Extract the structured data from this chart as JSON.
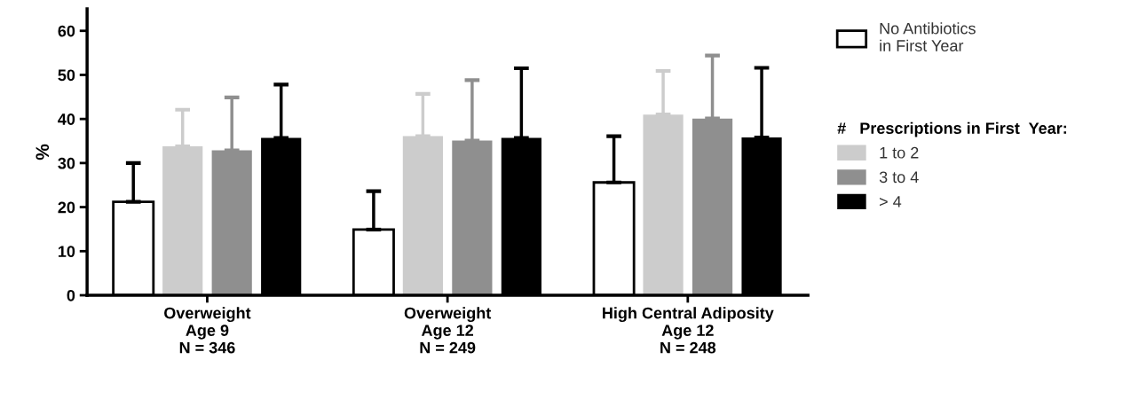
{
  "chart_data": {
    "type": "bar",
    "ylabel": "%",
    "categories": [
      "Overweight\nAge 9\nN = 346",
      "Overweight\nAge 12\nN = 249",
      "High Central Adiposity\nAge 12\nN = 248"
    ],
    "series": [
      {
        "name": "No Antibiotics\nin First Year",
        "color": "#ffffff",
        "values": [
          21.2,
          14.9,
          25.6
        ],
        "errors": [
          [
            21.2,
            30.0
          ],
          [
            14.9,
            23.6
          ],
          [
            25.6,
            36.1
          ]
        ]
      },
      {
        "name": "1 to 2",
        "color": "#cccccc",
        "values": [
          33.8,
          36.1,
          41.0
        ],
        "errors": [
          [
            33.8,
            42.1
          ],
          [
            36.1,
            45.7
          ],
          [
            41.0,
            50.9
          ]
        ]
      },
      {
        "name": "3 to 4",
        "color": "#8f8f8f",
        "values": [
          32.9,
          35.1,
          40.1
        ],
        "errors": [
          [
            32.9,
            44.9
          ],
          [
            35.1,
            48.8
          ],
          [
            40.1,
            54.4
          ]
        ]
      },
      {
        "name": "> 4",
        "color": "#000000",
        "values": [
          35.7,
          35.7,
          35.8
        ],
        "errors": [
          [
            35.7,
            47.8
          ],
          [
            35.7,
            51.5
          ],
          [
            35.8,
            51.6
          ]
        ]
      }
    ],
    "legend_title": "#   Prescriptions in First  Year:",
    "legend": "right",
    "ylim": [
      0,
      65
    ],
    "yticks": [
      0,
      10,
      20,
      30,
      40,
      50,
      60
    ],
    "grid": false
  }
}
